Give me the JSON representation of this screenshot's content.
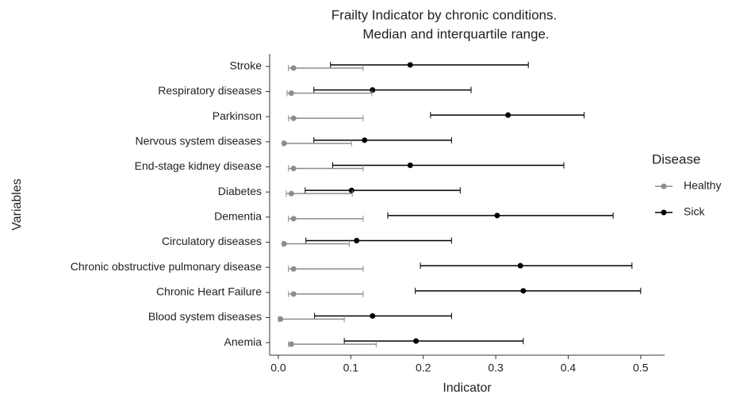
{
  "chart_data": {
    "type": "interval",
    "title": [
      "Frailty Indicator by chronic conditions.",
      "Median and interquartile range."
    ],
    "xlabel": "Indicator",
    "ylabel": "Variables",
    "legend_title": "Disease",
    "legend": "right",
    "categories": [
      "Stroke",
      "Respiratory diseases",
      "Parkinson",
      "Nervous system diseases",
      "End-stage kidney disease",
      "Diabetes",
      "Dementia",
      "Circulatory diseases",
      "Chronic obstructive pulmonary disease",
      "Chronic Heart Failure",
      "Blood system diseases",
      "Anemia"
    ],
    "series": [
      {
        "name": "Healthy",
        "color": "#8c8c8c",
        "values": [
          0.021,
          0.018,
          0.021,
          0.008,
          0.021,
          0.018,
          0.021,
          0.008,
          0.021,
          0.021,
          0.003,
          0.018
        ],
        "lo": [
          0.014,
          0.012,
          0.014,
          0.006,
          0.014,
          0.011,
          0.014,
          0.006,
          0.014,
          0.014,
          0.0,
          0.014
        ],
        "hi": [
          0.117,
          0.129,
          0.117,
          0.101,
          0.117,
          0.102,
          0.117,
          0.098,
          0.117,
          0.117,
          0.091,
          0.135
        ]
      },
      {
        "name": "Sick",
        "color": "#000000",
        "values": [
          0.182,
          0.13,
          0.317,
          0.119,
          0.182,
          0.101,
          0.302,
          0.108,
          0.334,
          0.338,
          0.13,
          0.19
        ],
        "lo": [
          0.072,
          0.049,
          0.21,
          0.049,
          0.075,
          0.037,
          0.151,
          0.038,
          0.196,
          0.189,
          0.05,
          0.091
        ],
        "hi": [
          0.345,
          0.266,
          0.422,
          0.239,
          0.394,
          0.251,
          0.462,
          0.239,
          0.488,
          0.5,
          0.239,
          0.338
        ]
      }
    ],
    "xlim": [
      -0.012,
      0.533
    ],
    "xticks": [
      {
        "value": 0,
        "label": "0.0"
      },
      0.1,
      0.2,
      0.3,
      0.4,
      0.5
    ]
  }
}
